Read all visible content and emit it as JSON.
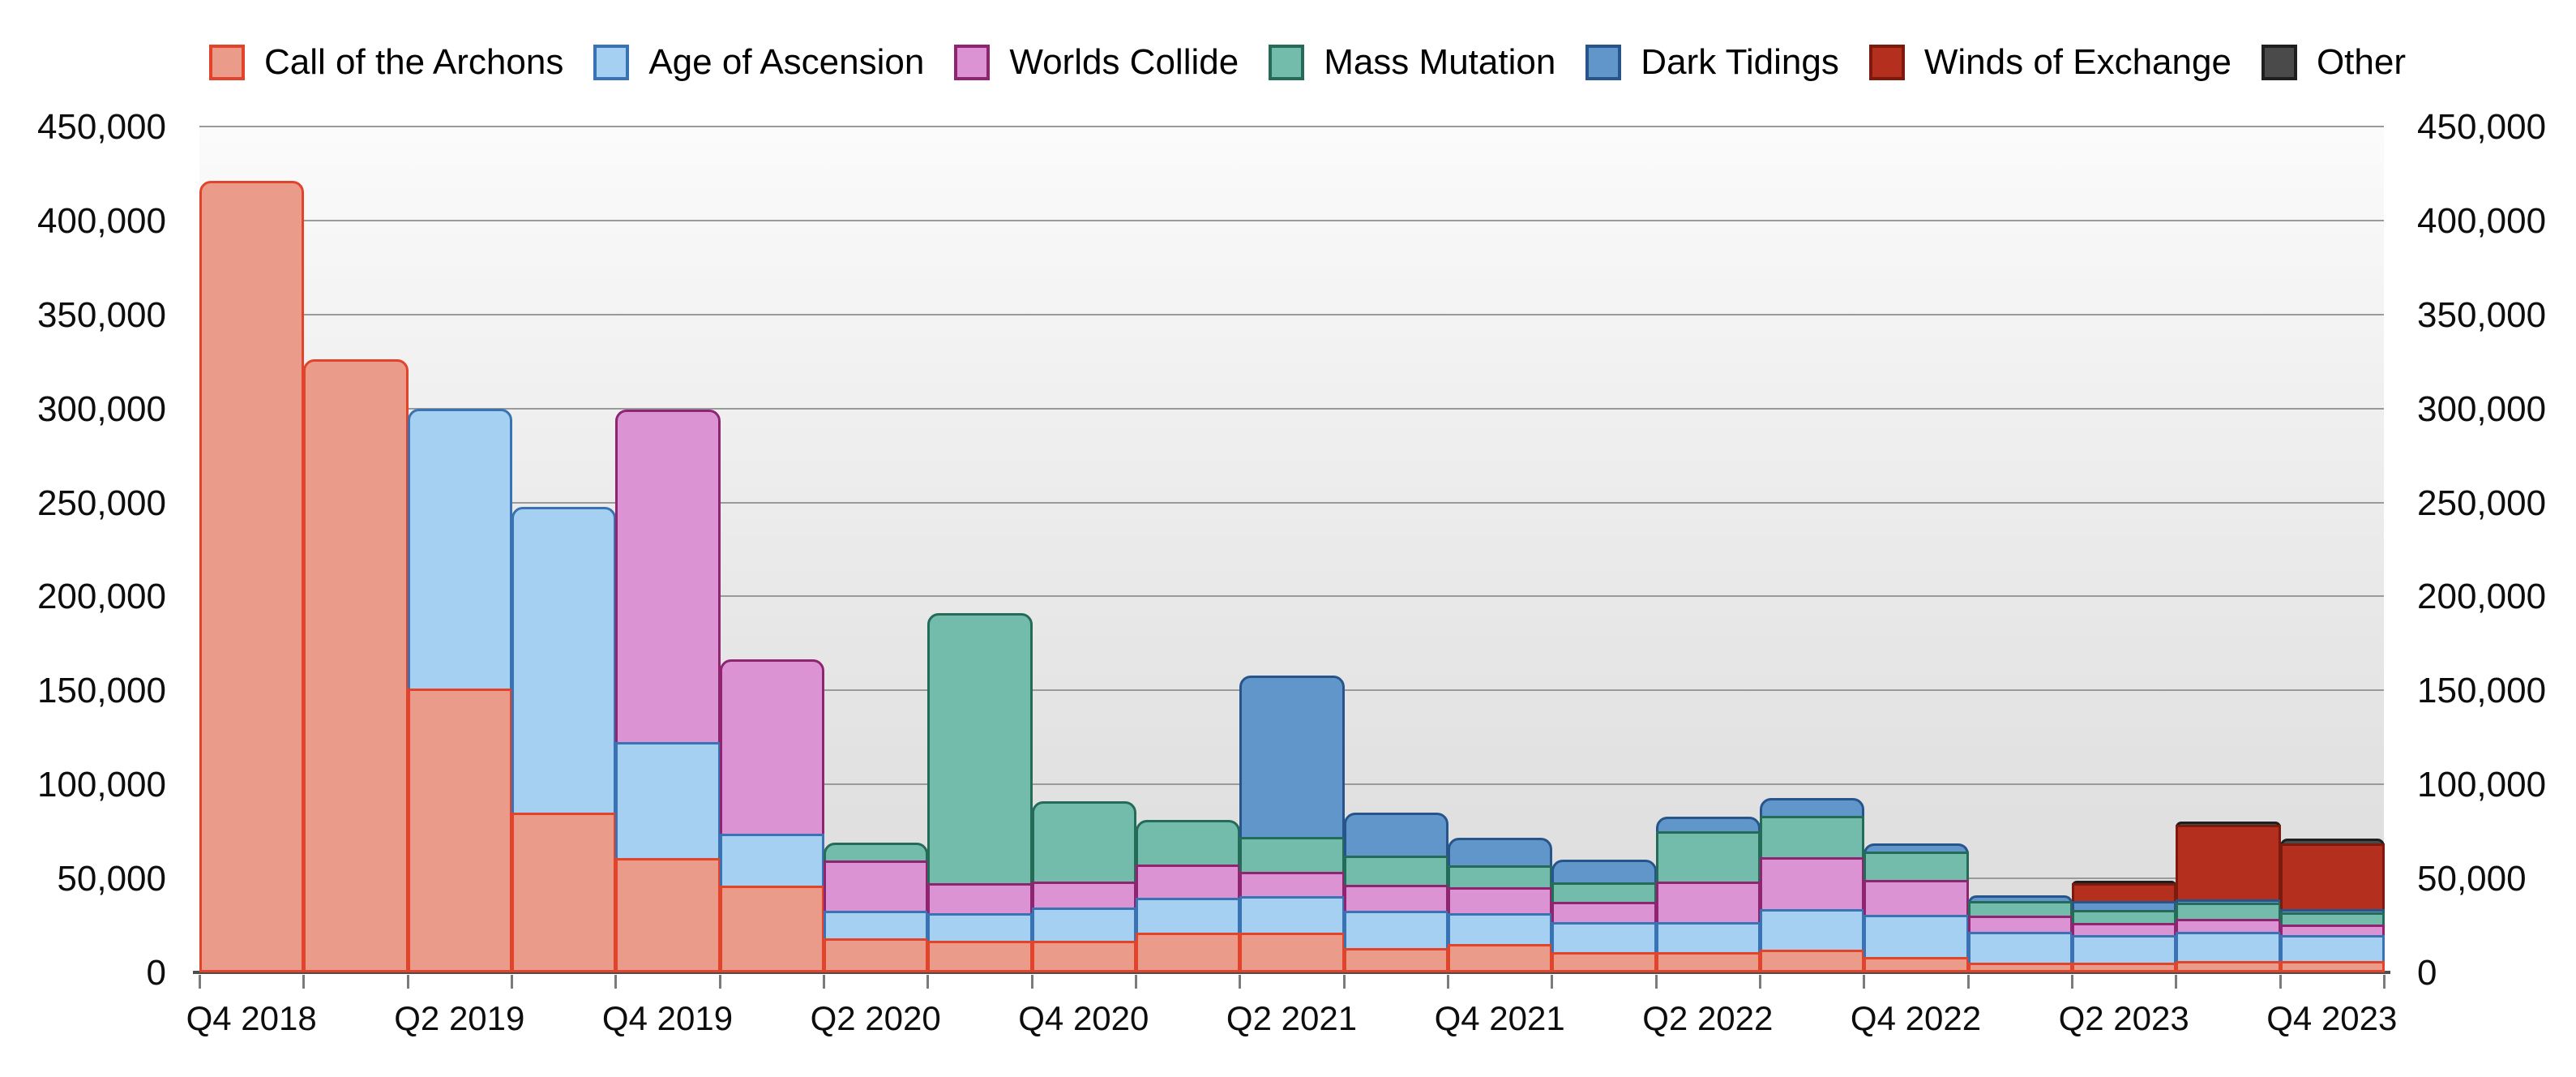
{
  "chart_data": {
    "type": "bar",
    "stacked": true,
    "title": "",
    "xlabel": "",
    "ylabel": "",
    "ylim": [
      0,
      450000
    ],
    "grid": true,
    "legend_position": "top",
    "categories": [
      "Q4 2018",
      "Q1 2019",
      "Q2 2019",
      "Q3 2019",
      "Q4 2019",
      "Q1 2020",
      "Q2 2020",
      "Q3 2020",
      "Q4 2020",
      "Q1 2021",
      "Q2 2021",
      "Q3 2021",
      "Q4 2021",
      "Q1 2022",
      "Q2 2022",
      "Q3 2022",
      "Q4 2022",
      "Q1 2023",
      "Q2 2023",
      "Q3 2023",
      "Q4 2023"
    ],
    "x_tick_labels": [
      "Q4 2018",
      "Q2 2019",
      "Q4 2019",
      "Q2 2020",
      "Q4 2020",
      "Q2 2021",
      "Q4 2021",
      "Q2 2022",
      "Q4 2022",
      "Q2 2023",
      "Q4 2023"
    ],
    "y_tick_labels": [
      "0",
      "50,000",
      "100,000",
      "150,000",
      "200,000",
      "250,000",
      "300,000",
      "350,000",
      "400,000",
      "450,000"
    ],
    "series": [
      {
        "name": "Call of the Archons",
        "fill": "#EA9B89",
        "border": "#E2432B",
        "values": [
          421000,
          326000,
          151000,
          85000,
          61000,
          46000,
          18000,
          17000,
          17000,
          21000,
          21000,
          13000,
          15000,
          11000,
          11000,
          12000,
          8000,
          5000,
          5000,
          6000,
          6000
        ]
      },
      {
        "name": "Age of Ascension",
        "fill": "#A5D0F2",
        "border": "#3973B4",
        "values": [
          0,
          0,
          150000,
          164000,
          63000,
          29000,
          16000,
          16000,
          19000,
          20000,
          21000,
          21000,
          18000,
          17000,
          17000,
          23000,
          24000,
          18000,
          16000,
          17000,
          15000
        ]
      },
      {
        "name": "Worlds Collide",
        "fill": "#DC93D4",
        "border": "#8F2471",
        "values": [
          0,
          0,
          0,
          0,
          178000,
          94000,
          28000,
          17000,
          15000,
          19000,
          14000,
          15000,
          15000,
          12000,
          23000,
          29000,
          20000,
          10000,
          8000,
          8000,
          7000
        ]
      },
      {
        "name": "Mass Mutation",
        "fill": "#73BCAB",
        "border": "#256C58",
        "values": [
          0,
          0,
          0,
          0,
          0,
          0,
          11000,
          145000,
          44000,
          25000,
          20000,
          17000,
          13000,
          12000,
          28000,
          23000,
          16000,
          9000,
          8000,
          10000,
          8000
        ]
      },
      {
        "name": "Dark Tidings",
        "fill": "#6096C9",
        "border": "#27558B",
        "values": [
          0,
          0,
          0,
          0,
          0,
          0,
          0,
          0,
          0,
          0,
          87000,
          24000,
          16000,
          13000,
          9000,
          11000,
          6000,
          4000,
          6000,
          3000,
          3000
        ]
      },
      {
        "name": "Winds of Exchange",
        "fill": "#B42F1D",
        "border": "#7D1A0E",
        "values": [
          0,
          0,
          0,
          0,
          0,
          0,
          0,
          0,
          0,
          0,
          0,
          0,
          0,
          0,
          0,
          0,
          0,
          0,
          11000,
          41000,
          36000
        ]
      },
      {
        "name": "Other",
        "fill": "#4A4A4A",
        "border": "#1F1F1F",
        "values": [
          0,
          0,
          0,
          0,
          0,
          0,
          0,
          0,
          0,
          0,
          0,
          0,
          0,
          0,
          0,
          0,
          0,
          0,
          2500,
          3000,
          4000
        ]
      }
    ]
  },
  "colors": {
    "page_background": "#FFFFFF",
    "plot_gradient_top": "#FBFBFB",
    "plot_gradient_bottom": "#DCDCDC",
    "gridline": "#9A9A9A",
    "axis_baseline": "#4D4D4D",
    "tick": "#7B7B7B",
    "label_text": "#0D0D0D"
  }
}
